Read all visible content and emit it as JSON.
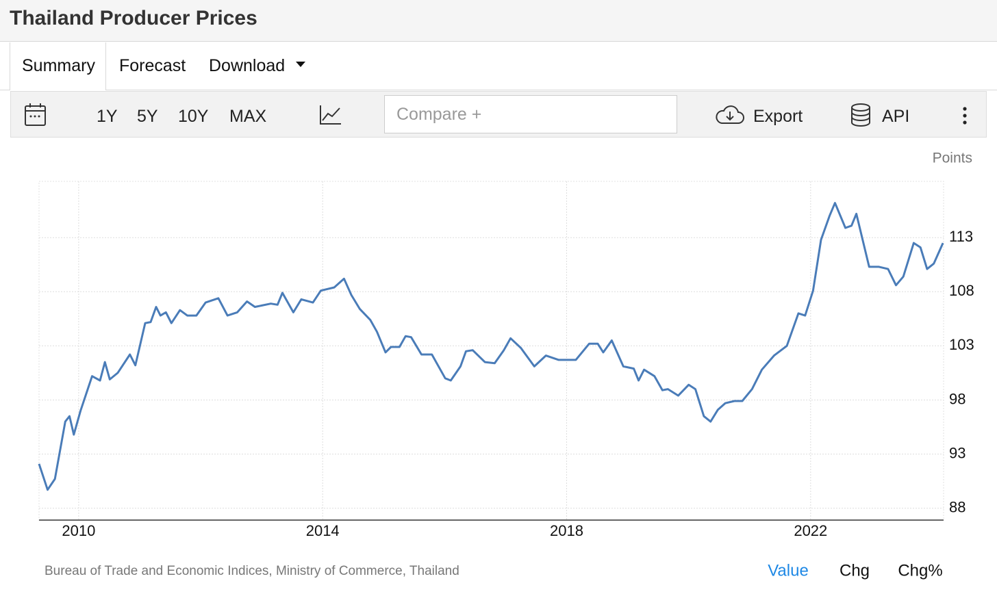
{
  "header": {
    "title": "Thailand Producer Prices"
  },
  "tabs": [
    "Summary",
    "Forecast",
    "Download"
  ],
  "toolbar": {
    "ranges": [
      "1Y",
      "5Y",
      "10Y",
      "MAX"
    ],
    "compare": "Compare +",
    "export": "Export",
    "api": "API"
  },
  "chart_data": {
    "type": "line",
    "y_label": "Points",
    "x": [
      2009.35,
      2009.49,
      2009.61,
      2009.78,
      2009.85,
      2009.92,
      2010.03,
      2010.22,
      2010.35,
      2010.43,
      2010.51,
      2010.64,
      2010.84,
      2010.93,
      2011.09,
      2011.18,
      2011.27,
      2011.34,
      2011.43,
      2011.52,
      2011.66,
      2011.78,
      2011.93,
      2012.08,
      2012.29,
      2012.44,
      2012.6,
      2012.76,
      2012.89,
      2013.15,
      2013.26,
      2013.34,
      2013.52,
      2013.65,
      2013.84,
      2013.97,
      2014.19,
      2014.35,
      2014.47,
      2014.61,
      2014.78,
      2014.89,
      2015.03,
      2015.12,
      2015.26,
      2015.36,
      2015.45,
      2015.62,
      2015.79,
      2016.01,
      2016.1,
      2016.26,
      2016.35,
      2016.46,
      2016.66,
      2016.82,
      2016.97,
      2017.08,
      2017.25,
      2017.47,
      2017.66,
      2017.87,
      2018.15,
      2018.37,
      2018.51,
      2018.6,
      2018.74,
      2018.93,
      2019.1,
      2019.18,
      2019.27,
      2019.44,
      2019.57,
      2019.66,
      2019.83,
      2020.0,
      2020.11,
      2020.25,
      2020.36,
      2020.48,
      2020.6,
      2020.75,
      2020.88,
      2021.04,
      2021.2,
      2021.4,
      2021.61,
      2021.8,
      2021.91,
      2022.04,
      2022.17,
      2022.31,
      2022.4,
      2022.57,
      2022.67,
      2022.75,
      2022.96,
      2023.12,
      2023.27,
      2023.4,
      2023.52,
      2023.69,
      2023.8,
      2023.91,
      2024.02,
      2024.17
    ],
    "series": [
      {
        "color": "#4a7cb8",
        "values": [
          92.1,
          89.7,
          90.7,
          96.0,
          96.5,
          94.8,
          97.0,
          100.2,
          99.8,
          101.5,
          99.9,
          100.5,
          102.2,
          101.2,
          105.1,
          105.2,
          106.6,
          105.8,
          106.1,
          105.1,
          106.3,
          105.8,
          105.8,
          107.0,
          107.4,
          105.8,
          106.1,
          107.1,
          106.6,
          106.9,
          106.8,
          107.9,
          106.1,
          107.3,
          107.0,
          108.1,
          108.4,
          109.2,
          107.7,
          106.4,
          105.4,
          104.3,
          102.4,
          102.9,
          102.9,
          103.9,
          103.8,
          102.2,
          102.2,
          100.0,
          99.8,
          101.1,
          102.5,
          102.6,
          101.5,
          101.4,
          102.6,
          103.7,
          102.8,
          101.1,
          102.1,
          101.7,
          101.7,
          103.2,
          103.2,
          102.4,
          103.5,
          101.1,
          100.9,
          99.8,
          100.8,
          100.2,
          98.9,
          99.0,
          98.4,
          99.4,
          99.0,
          96.5,
          96.0,
          97.1,
          97.7,
          97.9,
          97.9,
          99.0,
          100.8,
          102.1,
          103.0,
          106.0,
          105.8,
          108.1,
          112.8,
          115.0,
          116.2,
          113.9,
          114.1,
          115.2,
          110.3,
          110.3,
          110.1,
          108.6,
          109.4,
          112.5,
          112.1,
          110.1,
          110.6,
          112.5
        ]
      }
    ],
    "xlim": [
      2009.35,
      2024.18
    ],
    "xticks": [
      2010,
      2014,
      2018,
      2022
    ],
    "ylim": [
      86.9,
      118.2
    ],
    "yticks": [
      88,
      93,
      98,
      103,
      108,
      113
    ],
    "grid": true
  },
  "footer": {
    "source": "Bureau of Trade and Economic Indices, Ministry of Commerce, Thailand",
    "modes": [
      "Value",
      "Chg",
      "Chg%"
    ]
  }
}
